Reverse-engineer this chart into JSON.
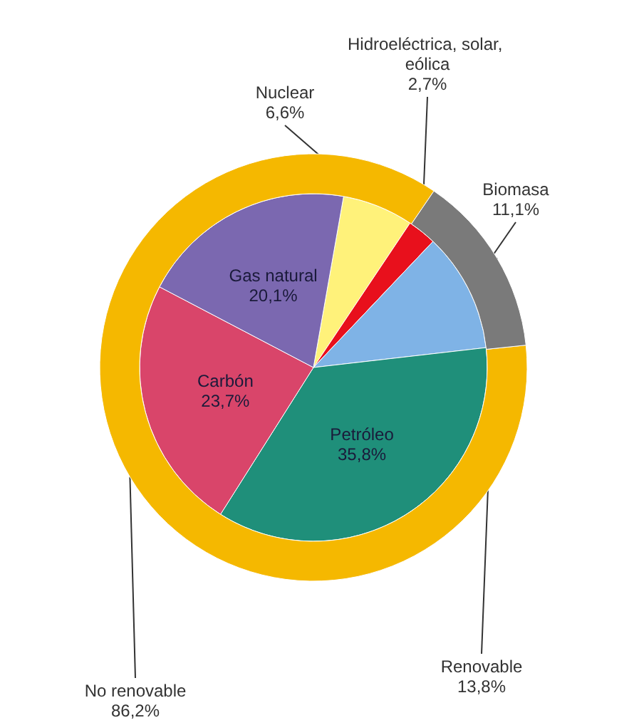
{
  "chart_data": [
    {
      "type": "pie",
      "categories": [
        "Nuclear",
        "Hidroeléctrica, solar, eólica",
        "Biomasa",
        "Petróleo",
        "Carbón",
        "Gas natural"
      ],
      "values": [
        6.6,
        2.7,
        11.1,
        35.8,
        23.7,
        20.1
      ],
      "value_labels": [
        "6,6%",
        "2,7%",
        "11,1%",
        "35,8%",
        "23,7%",
        "20,1%"
      ],
      "colors": [
        "#fff27a",
        "#e8101c",
        "#7fb3e6",
        "#1f8f7a",
        "#d9456a",
        "#7b68b0"
      ]
    },
    {
      "type": "donut",
      "categories": [
        "No renovable",
        "Renovable"
      ],
      "values": [
        86.2,
        13.8
      ],
      "value_labels": [
        "86,2%",
        "13,8%"
      ],
      "colors": [
        "#f5b800",
        "#7a7a7a"
      ]
    }
  ]
}
